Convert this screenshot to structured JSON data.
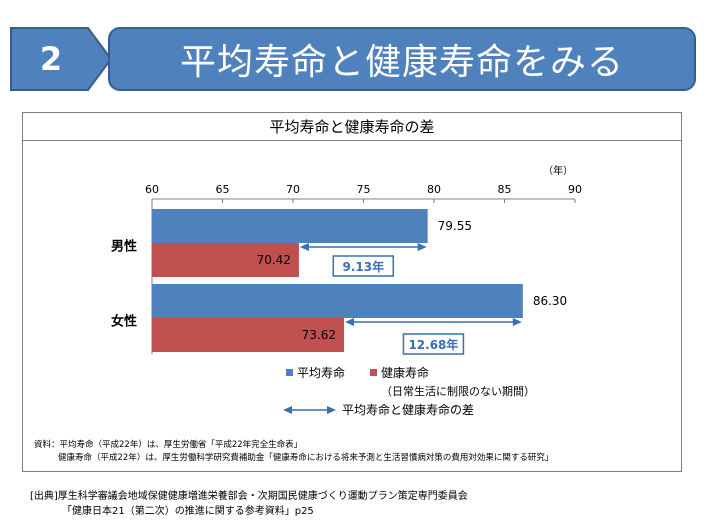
{
  "header": {
    "section_number": "2",
    "title": "平均寿命と健康寿命をみる"
  },
  "chart_data": {
    "type": "bar",
    "orientation": "horizontal",
    "title": "平均寿命と健康寿命の差",
    "unit_label": "（年）",
    "xlim": [
      60,
      90
    ],
    "ticks": [
      60,
      65,
      70,
      75,
      80,
      85,
      90
    ],
    "categories": [
      "男性",
      "女性"
    ],
    "series": [
      {
        "name": "平均寿命",
        "color": "#4f81bd",
        "values": [
          79.55,
          86.3
        ],
        "labels": [
          "79.55",
          "86.30"
        ]
      },
      {
        "name": "健康寿命",
        "color": "#c0504d",
        "values": [
          70.42,
          73.62
        ],
        "labels": [
          "70.42",
          "73.62"
        ]
      }
    ],
    "differences": [
      "9.13年",
      "12.68年"
    ],
    "legend": {
      "avg": "平均寿命",
      "healthy": "健康寿命",
      "healthy_note": "（日常生活に制限のない期間）",
      "diff": "平均寿命と健康寿命の差"
    },
    "grid": false
  },
  "notes": {
    "line1": "資料：平均寿命（平成22年）は、厚生労働省「平成22年完全生命表」",
    "line2": "健康寿命（平成22年）は、厚生労働科学研究費補助金「健康寿命における将来予測と生活習慣病対策の費用対効果に関する研究」"
  },
  "source": {
    "line1": "[出典]厚生科学審議会地域保健健康増進栄養部会・次期国民健康づくり運動プラン策定専門委員会",
    "line2": "「健康日本21（第二次）の推進に関する参考資料」p25"
  },
  "colors": {
    "accent": "#4f81bd",
    "accent_dark": "#385d8a",
    "healthy": "#c0504d",
    "diff_label": "#3a6fb0"
  }
}
